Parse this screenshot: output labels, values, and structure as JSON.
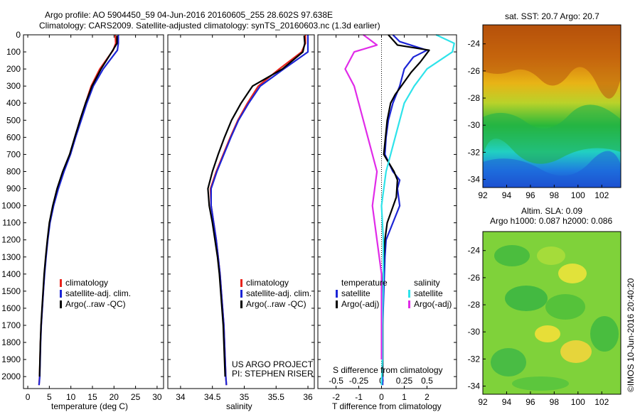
{
  "header": {
    "line1": "Argo profile: AO 5904450_59 04-Jun-2016 20160605_255 28.602S 97.638E",
    "line2": "Climatology: CARS2009. Satellite-adjusted climatology: synTS_20160603.nc (1.3d earlier)"
  },
  "sst_caption": "sat. SST: 20.7  Argo: 20.7",
  "sla_caption1": "Altim. SLA: 0.09",
  "sla_caption2": "Argo h1000: 0.087 h2000: 0.086",
  "project_lines": [
    "US ARGO PROJECT",
    "PI: STEPHEN RISER"
  ],
  "side_stamp": "©IMOS 10-Jun-2016 20:40:20",
  "colors": {
    "clim": "#e8231b",
    "sat": "#1c25d6",
    "argo": "#000000",
    "sat_s": "#2ee3ea",
    "argo_s": "#e02be8"
  },
  "legend_profile": [
    {
      "label": "climatology",
      "color": "#e8231b"
    },
    {
      "label": "satellite-adj. clim.",
      "color": "#1c25d6"
    },
    {
      "label": "Argo(..raw -QC)",
      "color": "#000000"
    }
  ],
  "legend_diff": {
    "temp_title": "temperature",
    "sal_title": "salinity",
    "temp_items": [
      {
        "label": "satellite",
        "color": "#1c25d6"
      },
      {
        "label": "Argo(-adj)",
        "color": "#000000"
      }
    ],
    "sal_items": [
      {
        "label": "satellite",
        "color": "#2ee3ea"
      },
      {
        "label": "Argo(-adj)",
        "color": "#e02be8"
      }
    ]
  },
  "chart_data": [
    {
      "type": "line",
      "xlabel": "temperature (deg C)",
      "ylabel": "",
      "xlim": [
        -1,
        31.5
      ],
      "ylim": [
        2070,
        0
      ],
      "xticks": [
        0,
        5,
        10,
        15,
        20,
        25,
        30
      ],
      "yticks": [
        0,
        100,
        200,
        300,
        400,
        500,
        600,
        700,
        800,
        900,
        1000,
        1100,
        1200,
        1300,
        1400,
        1500,
        1600,
        1700,
        1800,
        1900,
        2000
      ],
      "series": [
        {
          "name": "climatology",
          "color": "#e8231b",
          "x": [
            20.3,
            20.4,
            19.8,
            16.7,
            14.7,
            13.4,
            12.1,
            11.0,
            9.8,
            8.3,
            7.0,
            5.9,
            5.1,
            4.6,
            4.2,
            3.85,
            3.6,
            3.35,
            3.1,
            2.95,
            2.85,
            2.75,
            2.6
          ],
          "y": [
            0,
            50,
            90,
            200,
            300,
            400,
            500,
            600,
            700,
            800,
            900,
            1000,
            1100,
            1200,
            1300,
            1400,
            1500,
            1600,
            1700,
            1800,
            1900,
            2000,
            2050
          ]
        },
        {
          "name": "satellite-adj. clim.",
          "color": "#1c25d6",
          "x": [
            21.0,
            21.0,
            20.8,
            17.5,
            15.2,
            13.7,
            12.4,
            11.1,
            9.9,
            8.4,
            7.1,
            6.0,
            5.15,
            4.65,
            4.25,
            3.9,
            3.62,
            3.37,
            3.12,
            2.97,
            2.87,
            2.77,
            2.62
          ],
          "y": [
            0,
            50,
            90,
            200,
            300,
            400,
            500,
            600,
            700,
            800,
            900,
            1000,
            1100,
            1200,
            1300,
            1400,
            1500,
            1600,
            1700,
            1800,
            1900,
            2000,
            2050
          ]
        },
        {
          "name": "Argo(..raw -QC)",
          "color": "#000000",
          "x": [
            20.7,
            20.7,
            19.6,
            17.0,
            14.9,
            13.4,
            12.1,
            10.9,
            9.7,
            8.1,
            6.8,
            5.8,
            5.0,
            4.55,
            4.15,
            3.8,
            3.55,
            3.3,
            3.08,
            2.93,
            2.83,
            2.73
          ],
          "y": [
            5,
            50,
            95,
            200,
            300,
            400,
            500,
            600,
            700,
            800,
            900,
            1000,
            1100,
            1200,
            1300,
            1400,
            1500,
            1600,
            1700,
            1800,
            1900,
            2000
          ]
        }
      ]
    },
    {
      "type": "line",
      "xlabel": "salinity",
      "ylabel": "",
      "xlim": [
        33.8,
        36.1
      ],
      "ylim": [
        2070,
        0
      ],
      "xticks": [
        34,
        34.5,
        35,
        35.5,
        36
      ],
      "xtick_labels": [
        "34",
        "34.5",
        "35",
        "35.5",
        "36"
      ],
      "series": [
        {
          "name": "climatology",
          "color": "#e8231b",
          "x": [
            35.96,
            35.96,
            35.9,
            35.55,
            35.22,
            35.05,
            34.9,
            34.78,
            34.67,
            34.56,
            34.47,
            34.48,
            34.52,
            34.56,
            34.59,
            34.62,
            34.64,
            34.66,
            34.68,
            34.69,
            34.7,
            34.71,
            34.72
          ],
          "y": [
            0,
            50,
            100,
            200,
            300,
            400,
            500,
            600,
            700,
            800,
            900,
            1000,
            1100,
            1200,
            1300,
            1400,
            1500,
            1600,
            1700,
            1800,
            1900,
            2000,
            2050
          ]
        },
        {
          "name": "satellite-adj. clim.",
          "color": "#1c25d6",
          "x": [
            36.0,
            36.0,
            36.0,
            35.62,
            35.25,
            35.07,
            34.91,
            34.79,
            34.68,
            34.57,
            34.48,
            34.48,
            34.52,
            34.56,
            34.59,
            34.62,
            34.64,
            34.66,
            34.68,
            34.69,
            34.7,
            34.71,
            34.72
          ],
          "y": [
            0,
            50,
            100,
            200,
            300,
            400,
            500,
            600,
            700,
            800,
            900,
            1000,
            1100,
            1200,
            1300,
            1400,
            1500,
            1600,
            1700,
            1800,
            1900,
            2000,
            2050
          ]
        },
        {
          "name": "Argo(..raw -QC)",
          "color": "#000000",
          "x": [
            35.94,
            35.95,
            35.92,
            35.6,
            35.13,
            34.95,
            34.8,
            34.69,
            34.59,
            34.5,
            34.43,
            34.45,
            34.5,
            34.54,
            34.58,
            34.61,
            34.63,
            34.65,
            34.67,
            34.68,
            34.69,
            34.7
          ],
          "y": [
            5,
            50,
            100,
            200,
            300,
            400,
            500,
            600,
            700,
            800,
            900,
            1000,
            1100,
            1200,
            1300,
            1400,
            1500,
            1600,
            1700,
            1800,
            1900,
            2000
          ]
        }
      ]
    },
    {
      "type": "line",
      "xlabel": "T difference from climatology",
      "xlabel2": "S difference from climatology",
      "xlim": [
        -2.8,
        3.3
      ],
      "ylim": [
        2070,
        0
      ],
      "xticks": [
        -2,
        -1,
        0,
        1,
        2
      ],
      "xticks_top": [
        -0.5,
        -0.25,
        0,
        0.25,
        0.5
      ],
      "xtick_labels_top": [
        "-0.5",
        "-0.25",
        "0",
        "0.25",
        "0.5"
      ],
      "series": [
        {
          "name": "temperature satellite",
          "color": "#1c25d6",
          "x": [
            0.5,
            0.8,
            2.0,
            1.4,
            1.0,
            0.8,
            0.5,
            0.3,
            0.2,
            0.15,
            0.5,
            0.8,
            0.7,
            0.8,
            0.5,
            0.2,
            0.15,
            0.1,
            0.05,
            0.05,
            0.05,
            0.05
          ],
          "y": [
            0,
            40,
            90,
            130,
            200,
            300,
            400,
            500,
            600,
            700,
            800,
            850,
            900,
            1000,
            1100,
            1200,
            1300,
            1500,
            1700,
            1900,
            2000,
            2050
          ]
        },
        {
          "name": "temperature Argo(-adj)",
          "color": "#000000",
          "x": [
            0.3,
            0.7,
            2.1,
            1.7,
            1.3,
            0.6,
            0.4,
            0.25,
            0.1,
            0.55,
            0.7,
            0.65,
            0.25,
            0.15,
            0.1,
            0.05,
            0.05,
            0.05,
            0.05
          ],
          "y": [
            0,
            60,
            90,
            160,
            220,
            350,
            400,
            500,
            700,
            800,
            850,
            950,
            1100,
            1200,
            1300,
            1500,
            1700,
            1900,
            2000
          ]
        },
        {
          "name": "salinity satellite",
          "color": "#2ee3ea",
          "x": [
            0.6,
            0.8,
            0.78,
            0.5,
            0.36,
            0.25,
            0.15,
            0.05,
            0.0,
            0.02,
            0.02,
            0.01,
            0.01,
            0.0
          ],
          "y": [
            0,
            50,
            100,
            200,
            300,
            400,
            600,
            800,
            1000,
            1200,
            1400,
            1700,
            1900,
            2050
          ]
        },
        {
          "name": "salinity Argo(-adj)",
          "color": "#e02be8",
          "x": [
            -0.2,
            -0.05,
            -0.3,
            -0.4,
            -0.3,
            -0.25,
            -0.15,
            -0.05,
            -0.1,
            -0.05,
            0.0,
            0.0,
            0.0
          ],
          "y": [
            0,
            60,
            100,
            200,
            300,
            400,
            600,
            800,
            1000,
            1200,
            1400,
            1700,
            1900
          ]
        }
      ]
    },
    {
      "type": "heatmap",
      "title": "sat. SST: 20.7  Argo: 20.7",
      "xticks": [
        92,
        94,
        96,
        98,
        100,
        102
      ],
      "yticks": [
        -24,
        -26,
        -28,
        -30,
        -32,
        -34
      ],
      "xlim": [
        92,
        103.6
      ],
      "ylim": [
        -34.6,
        -22.6
      ]
    },
    {
      "type": "heatmap",
      "title": "Altim. SLA: 0.09",
      "xticks": [
        92,
        94,
        96,
        98,
        100,
        102
      ],
      "yticks": [
        -24,
        -26,
        -28,
        -30,
        -32,
        -34
      ],
      "xlim": [
        92,
        103.6
      ],
      "ylim": [
        -34.6,
        -22.6
      ]
    }
  ]
}
